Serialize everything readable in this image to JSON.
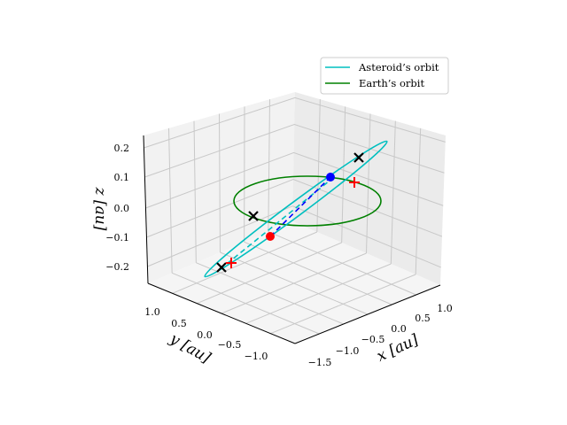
{
  "chart_data": {
    "type": "line",
    "projection": "3d",
    "xlabel": "x [au]",
    "ylabel": "y [au]",
    "zlabel": "z [au]",
    "xticks": [
      "−1.5",
      "−1.0",
      "−0.5",
      "0.0",
      "0.5",
      "1.0"
    ],
    "yticks": [
      "1.0",
      "0.5",
      "0.0",
      "−0.5",
      "−1.0"
    ],
    "zticks": [
      "0.2",
      "0.1",
      "0.0",
      "−0.1",
      "−0.2"
    ],
    "xlim": [
      -1.7,
      1.2
    ],
    "ylim": [
      -1.3,
      1.3
    ],
    "zlim": [
      -0.25,
      0.25
    ],
    "grid": true,
    "legend": {
      "placement": "top-right",
      "entries": [
        {
          "label": "Asteroid’s orbit",
          "color": "#00bfbf"
        },
        {
          "label": "Earth’s orbit",
          "color": "#008000"
        }
      ]
    },
    "series": [
      {
        "name": "Asteroid's orbit",
        "color": "#00bfbf",
        "style": "ellipse, highly inclined"
      },
      {
        "name": "Earth's orbit",
        "color": "#008000",
        "style": "circle radius 1 au in z=0"
      }
    ],
    "markers": [
      {
        "name": "asteroid position",
        "color": "#0000ff",
        "shape": "dot"
      },
      {
        "name": "earth position",
        "color": "#ff0000",
        "shape": "dot"
      },
      {
        "name": "nodes",
        "color": "#000000",
        "shape": "x",
        "count": 3
      },
      {
        "name": "other points",
        "color": "#ff0000",
        "shape": "+",
        "count": 2
      }
    ]
  }
}
